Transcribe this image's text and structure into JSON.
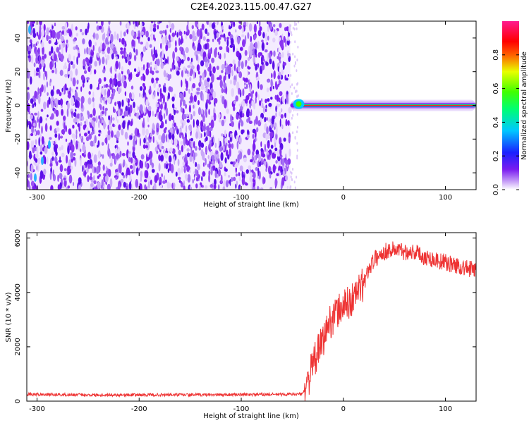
{
  "figure": {
    "title": "C2E4.2023.115.00.47.G27"
  },
  "colors": {
    "snr_line": "#ee3333",
    "noise": "#7a1cf0",
    "frame": "#000000"
  },
  "chart_data": [
    {
      "type": "heatmap",
      "xlabel": "Height of straight line (km)",
      "ylabel": "Frequency (Hz)",
      "xlim": [
        -310,
        130
      ],
      "ylim": [
        -50,
        50
      ],
      "xticks": [
        -300,
        -200,
        -100,
        0,
        100
      ],
      "yticks": [
        -40,
        -20,
        0,
        20,
        40
      ],
      "noise_region_x": [
        -310,
        -52
      ],
      "signal_band_x": [
        -52,
        130
      ],
      "signal_band_center_hz": 0,
      "colorbar": {
        "label": "Normalized spectral amplitude",
        "range": [
          0,
          1
        ],
        "ticks": [
          "0.0",
          "0.2",
          "0.4",
          "0.6",
          "0.8"
        ],
        "colormap": "hsv-like rainbow (white, violet, blue, cyan, green, yellow, red, magenta)"
      }
    },
    {
      "type": "line",
      "xlabel": "Height of straight line (km)",
      "ylabel": "SNR (10 * v/v)",
      "xlim": [
        -310,
        130
      ],
      "ylim": [
        0,
        6200
      ],
      "xticks": [
        -300,
        -200,
        -100,
        0,
        100
      ],
      "yticks": [
        0,
        2000,
        4000,
        6000
      ],
      "series": [
        {
          "x": [
            -310,
            -250,
            -200,
            -150,
            -100,
            -60,
            -40,
            -35,
            -30,
            -25,
            -20,
            -15,
            -10,
            -5,
            0,
            5,
            10,
            15,
            20,
            25,
            30,
            40,
            50,
            60,
            70,
            80,
            90,
            100,
            110,
            120,
            130
          ],
          "y": [
            250,
            230,
            230,
            230,
            240,
            250,
            260,
            700,
            1300,
            1800,
            2200,
            2800,
            3100,
            3300,
            3500,
            3600,
            3800,
            4100,
            4300,
            4900,
            5200,
            5500,
            5600,
            5500,
            5500,
            5300,
            5200,
            5100,
            5000,
            4900,
            4800
          ]
        }
      ]
    }
  ]
}
